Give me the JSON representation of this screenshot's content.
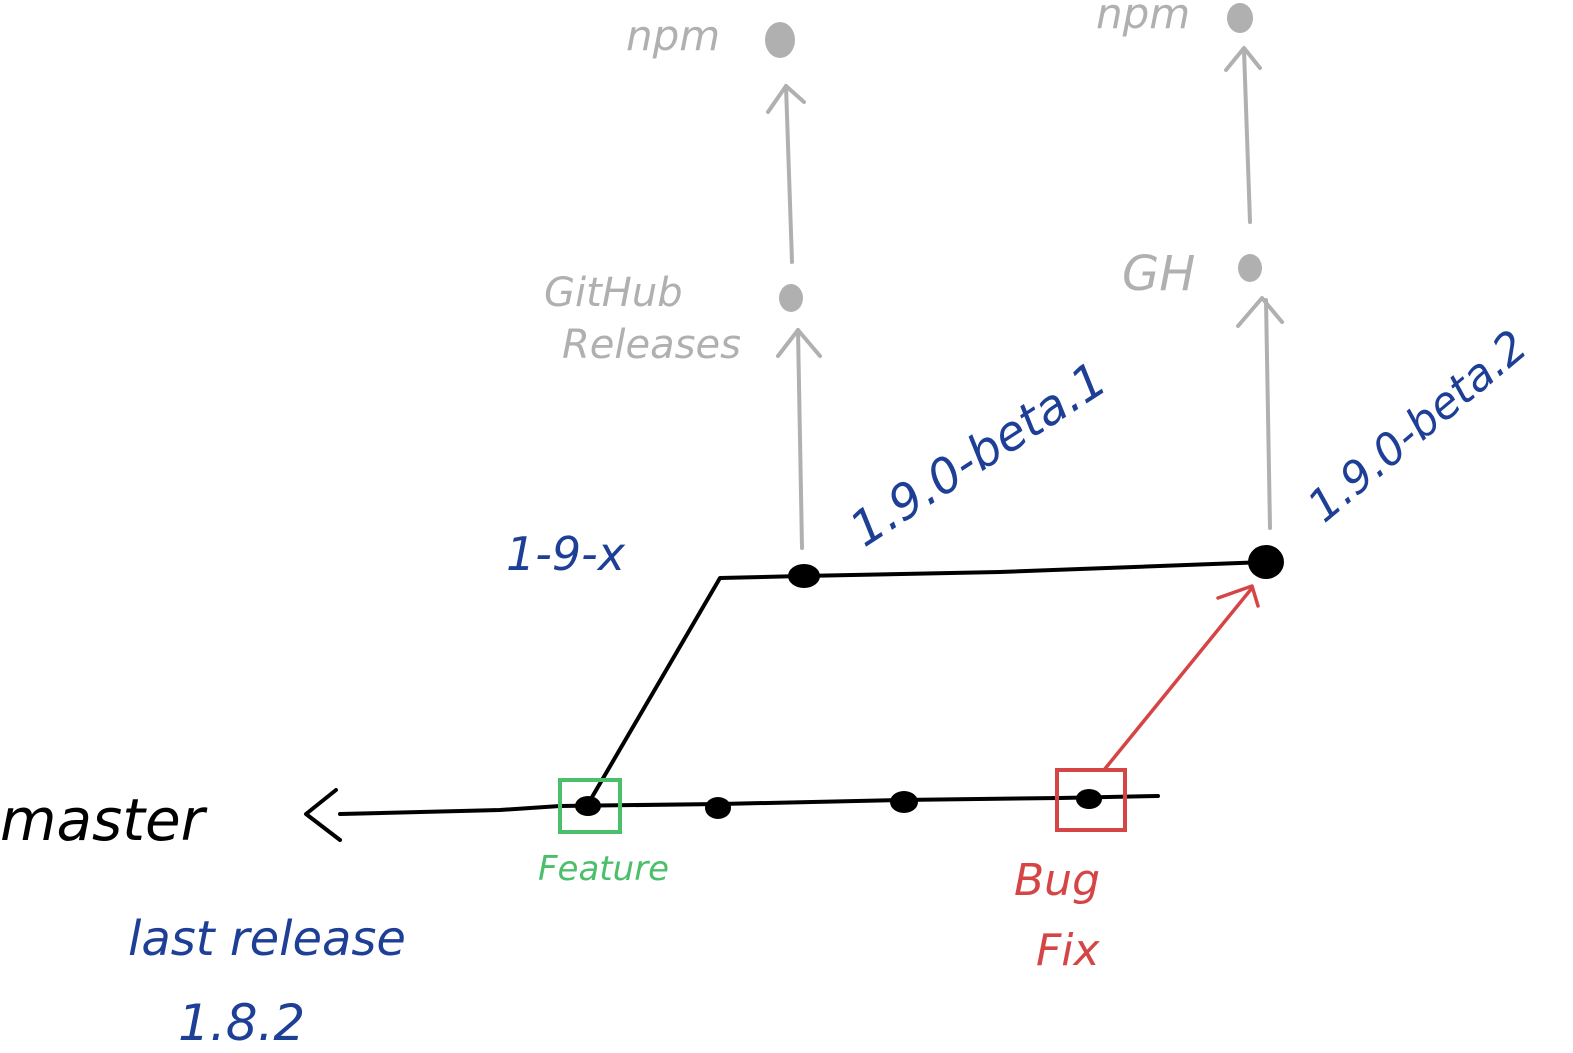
{
  "colors": {
    "background": "#ffffff",
    "branch_line": "#000000",
    "commit": "#000000",
    "release_label": "#1e3f96",
    "publish": "#b0b0b0",
    "feature": "#4cbf6a",
    "bugfix": "#d64545"
  },
  "labels": {
    "master": "master",
    "branch_1_9_x": "1-9-x",
    "last_release_line1": "last release",
    "last_release_line2": "1.8.2",
    "feature": "Feature",
    "bug_line1": "Bug",
    "bug_line2": "Fix",
    "beta1": "1.9.0-beta.1",
    "beta2": "1.9.0-beta.2",
    "github_line1": "GitHub",
    "github_line2": "Releases",
    "gh": "GH",
    "npm_left": "npm",
    "npm_right": "npm"
  }
}
